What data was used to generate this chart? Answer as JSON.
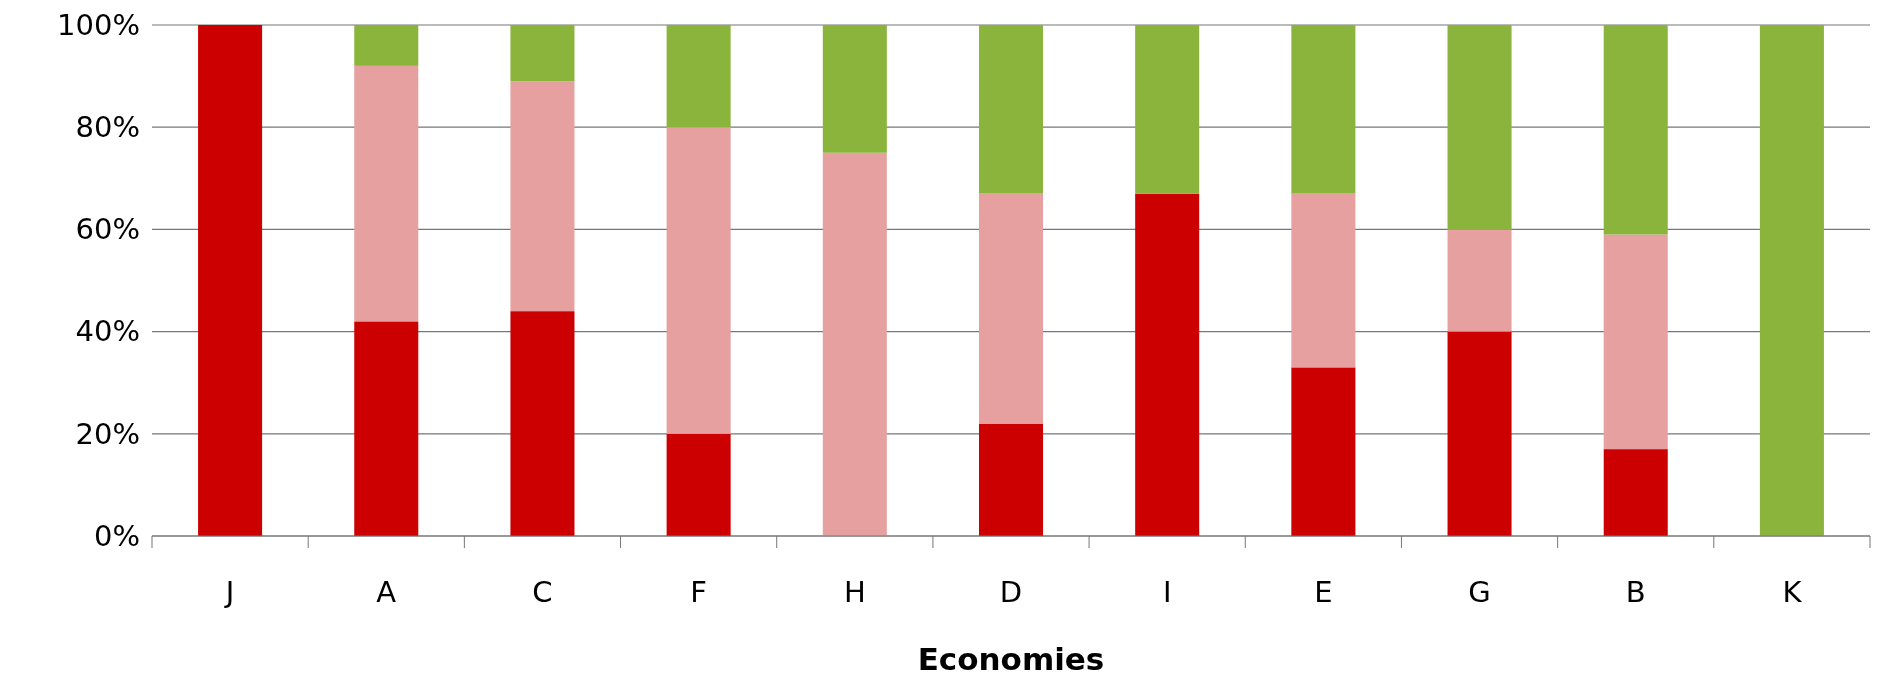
{
  "chart_data": {
    "type": "bar",
    "stacked": true,
    "xlabel": "Economies",
    "categories": [
      "J",
      "A",
      "C",
      "F",
      "H",
      "D",
      "I",
      "E",
      "G",
      "B",
      "K"
    ],
    "series": [
      {
        "color": "#cc0000",
        "values": [
          100,
          42,
          44,
          20,
          0,
          22,
          67,
          33,
          40,
          17,
          0
        ]
      },
      {
        "color": "#e6a0a0",
        "values": [
          0,
          50,
          45,
          60,
          75,
          45,
          0,
          34,
          20,
          42,
          0
        ]
      },
      {
        "color": "#8ab43c",
        "values": [
          0,
          8,
          11,
          20,
          25,
          33,
          33,
          33,
          40,
          41,
          100
        ]
      }
    ],
    "ylim": [
      0,
      100
    ],
    "yticks": [
      {
        "value": 0,
        "label": "0%"
      },
      {
        "value": 20,
        "label": "20%"
      },
      {
        "value": 40,
        "label": "40%"
      },
      {
        "value": 60,
        "label": "60%"
      },
      {
        "value": 80,
        "label": "80%"
      },
      {
        "value": 100,
        "label": "100%"
      }
    ],
    "grid": "y"
  }
}
